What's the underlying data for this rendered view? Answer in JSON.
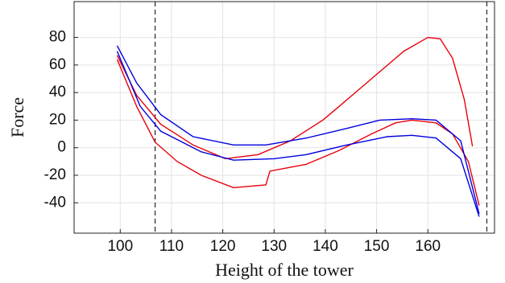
{
  "chart_data": {
    "type": "line",
    "xlabel": "Height of the tower",
    "ylabel": "Force",
    "xlim": [
      91,
      173
    ],
    "ylim": [
      -62,
      106
    ],
    "xticks": [
      100,
      110,
      120,
      130,
      140,
      150,
      160
    ],
    "yticks": [
      -40,
      -20,
      0,
      20,
      40,
      60,
      80
    ],
    "grid": true,
    "vlines": [
      106.8,
      171.5
    ],
    "series": [
      {
        "color": "#e8000b",
        "x": [
          99.4,
          103.2,
          107.9,
          114.2,
          120.5,
          126.9,
          133.2,
          139.5,
          142.7,
          149,
          155.3,
          160,
          162.4,
          164.8,
          167.1,
          168.7
        ],
        "values": [
          67,
          38,
          17,
          2,
          -8,
          -5,
          5,
          20,
          30,
          50,
          70,
          80,
          79,
          65,
          35,
          1
        ]
      },
      {
        "color": "#e8000b",
        "x": [
          99.4,
          103.2,
          106.8,
          111.1,
          115.8,
          122.1,
          128.4,
          129.2,
          136.3,
          142.7,
          149,
          153.7,
          156.9,
          161.6,
          164.8,
          167.9,
          170
        ],
        "values": [
          64,
          30,
          4,
          -10,
          -20,
          -29,
          -27,
          -17,
          -12,
          -2,
          10,
          18,
          20,
          18,
          10,
          -10,
          -42
        ]
      },
      {
        "color": "#0000e0",
        "x": [
          99.4,
          103.2,
          107.9,
          114.2,
          122.1,
          128.4,
          136.3,
          144.2,
          150.6,
          156.9,
          161.6,
          166.4,
          170
        ],
        "values": [
          74,
          47,
          24,
          8,
          2,
          2,
          7,
          14,
          20,
          21,
          20,
          5,
          -48
        ]
      },
      {
        "color": "#0000e0",
        "x": [
          99.4,
          103.9,
          107.9,
          115.8,
          122.1,
          130,
          136.3,
          144.2,
          152.1,
          156.9,
          161.6,
          166.4,
          170
        ],
        "values": [
          70,
          30,
          12,
          -3,
          -9,
          -8,
          -5,
          2,
          8,
          9,
          7,
          -8,
          -50
        ]
      }
    ]
  }
}
